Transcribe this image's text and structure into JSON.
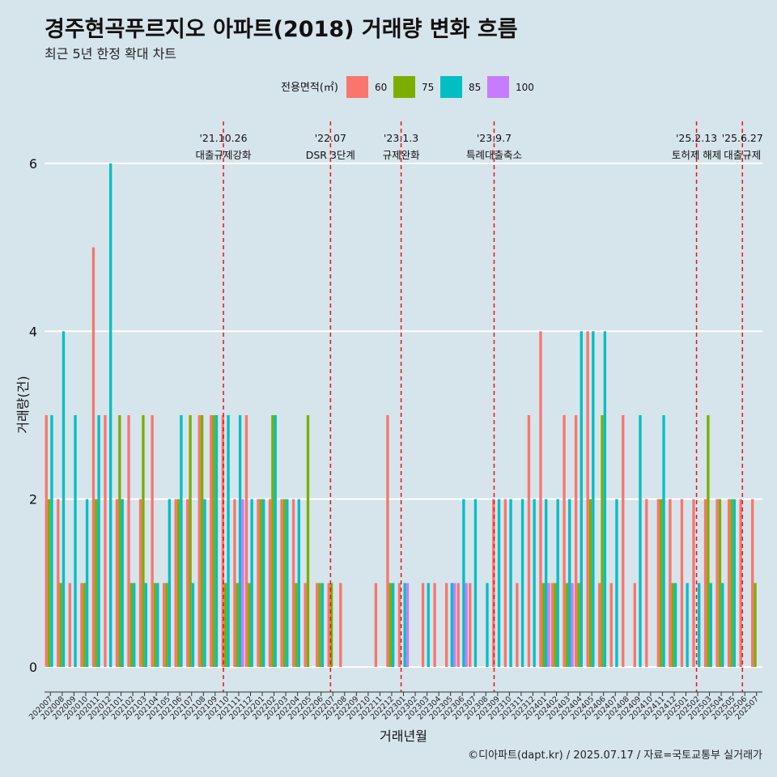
{
  "chart_data": {
    "type": "bar",
    "title": "경주현곡푸르지오 아파트(2018) 거래량 변화 흐름",
    "subtitle": "최근 5년 한정 확대 차트",
    "xlabel": "거래년월",
    "ylabel": "거래량(건)",
    "ylim": [
      -0.25,
      6.5
    ],
    "yticks": [
      0,
      2,
      4,
      6
    ],
    "caption": "©디아파트(dapt.kr) / 2025.07.17 / 자료=국토교통부 실거래가",
    "legend": {
      "title": "전용면적(㎡)",
      "position": "top",
      "entries": [
        {
          "name": "60",
          "color": "#F8766D"
        },
        {
          "name": "75",
          "color": "#7CAE00"
        },
        {
          "name": "85",
          "color": "#00BFC4"
        },
        {
          "name": "100",
          "color": "#C77CFF"
        }
      ]
    },
    "categories": [
      "202007",
      "202008",
      "202009",
      "202010",
      "202011",
      "202012",
      "202101",
      "202102",
      "202103",
      "202104",
      "202105",
      "202106",
      "202107",
      "202108",
      "202109",
      "202110",
      "202111",
      "202112",
      "202201",
      "202202",
      "202203",
      "202204",
      "202205",
      "202206",
      "202207",
      "202208",
      "202209",
      "202210",
      "202211",
      "202212",
      "202301",
      "202302",
      "202303",
      "202304",
      "202305",
      "202306",
      "202307",
      "202308",
      "202309",
      "202310",
      "202311",
      "202312",
      "202401",
      "202402",
      "202403",
      "202404",
      "202405",
      "202406",
      "202407",
      "202408",
      "202409",
      "202410",
      "202411",
      "202412",
      "202501",
      "202502",
      "202503",
      "202504",
      "202505",
      "202506",
      "202507"
    ],
    "series": [
      {
        "name": "60",
        "values": [
          3,
          2,
          1,
          1,
          5,
          3,
          2,
          3,
          2,
          3,
          1,
          2,
          2,
          3,
          3,
          3,
          2,
          3,
          2,
          2,
          2,
          2,
          1,
          1,
          1,
          1,
          0,
          0,
          1,
          3,
          1,
          0,
          1,
          1,
          1,
          1,
          1,
          0,
          2,
          2,
          1,
          3,
          4,
          1,
          3,
          3,
          4,
          1,
          1,
          3,
          1,
          2,
          2,
          2,
          2,
          2,
          2,
          2,
          2,
          2,
          2
        ]
      },
      {
        "name": "75",
        "values": [
          2,
          1,
          0,
          1,
          2,
          0,
          3,
          1,
          3,
          1,
          1,
          2,
          3,
          3,
          3,
          1,
          1,
          1,
          2,
          3,
          2,
          1,
          3,
          1,
          1,
          0,
          0,
          0,
          0,
          1,
          0,
          0,
          0,
          0,
          0,
          0,
          0,
          0,
          0,
          0,
          0,
          0,
          1,
          1,
          1,
          1,
          2,
          3,
          0,
          0,
          0,
          0,
          2,
          1,
          0,
          0,
          3,
          2,
          2,
          0,
          1
        ]
      },
      {
        "name": "85",
        "values": [
          3,
          4,
          3,
          2,
          3,
          6,
          2,
          1,
          1,
          1,
          2,
          3,
          1,
          2,
          3,
          3,
          3,
          2,
          2,
          3,
          2,
          2,
          0,
          1,
          0,
          0,
          0,
          0,
          0,
          1,
          1,
          0,
          1,
          0,
          1,
          2,
          2,
          1,
          2,
          2,
          2,
          2,
          2,
          2,
          2,
          4,
          4,
          4,
          2,
          0,
          3,
          0,
          3,
          1,
          1,
          1,
          1,
          1,
          2,
          0,
          0
        ]
      },
      {
        "name": "100",
        "values": [
          0,
          0,
          0,
          0,
          0,
          0,
          0,
          0,
          0,
          0,
          0,
          0,
          0,
          0,
          0,
          0,
          2,
          0,
          0,
          0,
          0,
          0,
          0,
          0,
          0,
          0,
          0,
          0,
          0,
          0,
          1,
          0,
          0,
          0,
          1,
          1,
          0,
          0,
          0,
          0,
          0,
          0,
          1,
          0,
          1,
          0,
          0,
          0,
          0,
          0,
          0,
          0,
          0,
          0,
          0,
          0,
          0,
          0,
          0,
          0,
          0
        ]
      }
    ],
    "annotations": [
      {
        "at": 15.2,
        "date": "'21.10.26",
        "label": "대출규제강화"
      },
      {
        "at": 24.3,
        "date": "'22.07",
        "label": "DSR 3단계"
      },
      {
        "at": 30.3,
        "date": "'23.1.3",
        "label": "규제완화"
      },
      {
        "at": 38.2,
        "date": "'23.9.7",
        "label": "특례대출축소"
      },
      {
        "at": 55.4,
        "date": "'25.2.13",
        "label": "토허제 해제"
      },
      {
        "at": 59.3,
        "date": "'25.6.27",
        "label": "대출규제"
      }
    ]
  }
}
